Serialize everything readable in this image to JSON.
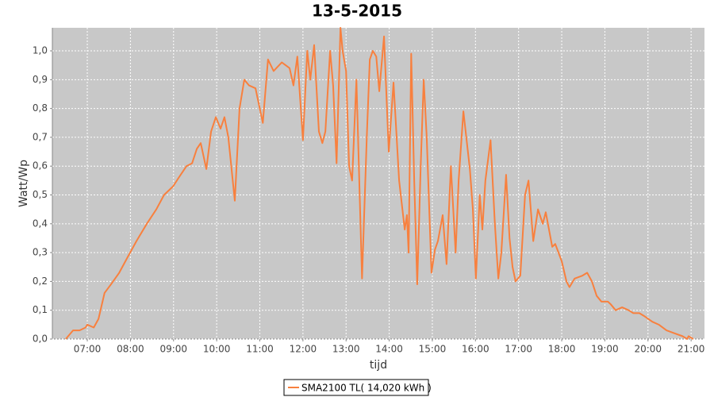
{
  "chart_data": {
    "type": "line",
    "title": "13-5-2015",
    "x_label": "tijd",
    "y_label": "Watt/Wp",
    "x": [
      6.5,
      6.67,
      6.82,
      6.96,
      7.0,
      7.15,
      7.26,
      7.4,
      7.55,
      7.74,
      7.92,
      8.14,
      8.38,
      8.6,
      8.78,
      8.99,
      9.12,
      9.3,
      9.43,
      9.54,
      9.63,
      9.76,
      9.87,
      9.98,
      10.09,
      10.18,
      10.27,
      10.42,
      10.53,
      10.64,
      10.75,
      10.9,
      11.07,
      11.19,
      11.32,
      11.51,
      11.69,
      11.78,
      11.87,
      12.0,
      12.1,
      12.17,
      12.26,
      12.37,
      12.45,
      12.52,
      12.63,
      12.7,
      12.78,
      12.87,
      12.92,
      13.0,
      13.07,
      13.14,
      13.24,
      13.37,
      13.48,
      13.55,
      13.62,
      13.7,
      13.77,
      13.88,
      13.99,
      14.1,
      14.23,
      14.36,
      14.41,
      14.45,
      14.51,
      14.58,
      14.65,
      14.73,
      14.8,
      14.87,
      14.98,
      15.06,
      15.13,
      15.24,
      15.33,
      15.43,
      15.54,
      15.61,
      15.72,
      15.87,
      15.94,
      16.01,
      16.1,
      16.16,
      16.23,
      16.35,
      16.45,
      16.53,
      16.6,
      16.71,
      16.79,
      16.86,
      16.93,
      17.04,
      17.15,
      17.23,
      17.34,
      17.45,
      17.56,
      17.63,
      17.78,
      17.85,
      18.0,
      18.11,
      18.18,
      18.3,
      18.48,
      18.59,
      18.7,
      18.81,
      18.92,
      19.07,
      19.14,
      19.25,
      19.4,
      19.55,
      19.66,
      19.8,
      19.91,
      20.1,
      20.25,
      20.43,
      20.61,
      20.8,
      20.91,
      20.94,
      21.05
    ],
    "series": [
      {
        "name": "SMA2100 TL( 14,020 kWh )",
        "color": "#f8803e",
        "values": [
          0,
          0.03,
          0.03,
          0.04,
          0.05,
          0.04,
          0.07,
          0.16,
          0.19,
          0.23,
          0.28,
          0.34,
          0.4,
          0.45,
          0.5,
          0.53,
          0.56,
          0.6,
          0.61,
          0.66,
          0.68,
          0.59,
          0.72,
          0.77,
          0.73,
          0.77,
          0.7,
          0.48,
          0.8,
          0.9,
          0.88,
          0.87,
          0.75,
          0.97,
          0.93,
          0.96,
          0.94,
          0.88,
          0.98,
          0.69,
          1.0,
          0.9,
          1.02,
          0.72,
          0.68,
          0.72,
          1.0,
          0.88,
          0.61,
          1.08,
          1.0,
          0.93,
          0.6,
          0.55,
          0.9,
          0.21,
          0.7,
          0.97,
          1.0,
          0.98,
          0.86,
          1.05,
          0.65,
          0.89,
          0.55,
          0.38,
          0.43,
          0.3,
          0.99,
          0.55,
          0.19,
          0.6,
          0.9,
          0.7,
          0.23,
          0.31,
          0.34,
          0.43,
          0.26,
          0.6,
          0.3,
          0.55,
          0.79,
          0.59,
          0.45,
          0.21,
          0.5,
          0.38,
          0.55,
          0.69,
          0.4,
          0.21,
          0.3,
          0.57,
          0.35,
          0.25,
          0.2,
          0.22,
          0.5,
          0.55,
          0.34,
          0.45,
          0.4,
          0.44,
          0.32,
          0.33,
          0.27,
          0.2,
          0.18,
          0.21,
          0.22,
          0.23,
          0.2,
          0.15,
          0.13,
          0.13,
          0.12,
          0.1,
          0.11,
          0.1,
          0.09,
          0.09,
          0.08,
          0.06,
          0.05,
          0.03,
          0.02,
          0.01,
          0,
          0.01,
          0
        ]
      }
    ],
    "xlim": [
      6.19,
      21.31
    ],
    "xticks": [
      {
        "value": 7,
        "label": "07:00"
      },
      {
        "value": 8,
        "label": "08:00"
      },
      {
        "value": 9,
        "label": "09:00"
      },
      {
        "value": 10,
        "label": "10:00"
      },
      {
        "value": 11,
        "label": "11:00"
      },
      {
        "value": 12,
        "label": "12:00"
      },
      {
        "value": 13,
        "label": "13:00"
      },
      {
        "value": 14,
        "label": "14:00"
      },
      {
        "value": 15,
        "label": "15:00"
      },
      {
        "value": 16,
        "label": "16:00"
      },
      {
        "value": 17,
        "label": "17:00"
      },
      {
        "value": 18,
        "label": "18:00"
      },
      {
        "value": 19,
        "label": "19:00"
      },
      {
        "value": 20,
        "label": "20:00"
      },
      {
        "value": 21,
        "label": "21:00"
      }
    ],
    "ylim": [
      0,
      1.08
    ],
    "yticks": [
      {
        "value": 0,
        "label": "0,0"
      },
      {
        "value": 0.1,
        "label": "0,1"
      },
      {
        "value": 0.2,
        "label": "0,2"
      },
      {
        "value": 0.3,
        "label": "0,3"
      },
      {
        "value": 0.4,
        "label": "0,4"
      },
      {
        "value": 0.5,
        "label": "0,5"
      },
      {
        "value": 0.6,
        "label": "0,6"
      },
      {
        "value": 0.7,
        "label": "0,7"
      },
      {
        "value": 0.8,
        "label": "0,8"
      },
      {
        "value": 0.9,
        "label": "0,9"
      },
      {
        "value": 1.0,
        "label": "1,0"
      }
    ],
    "grid": true,
    "legend": "bottom"
  }
}
